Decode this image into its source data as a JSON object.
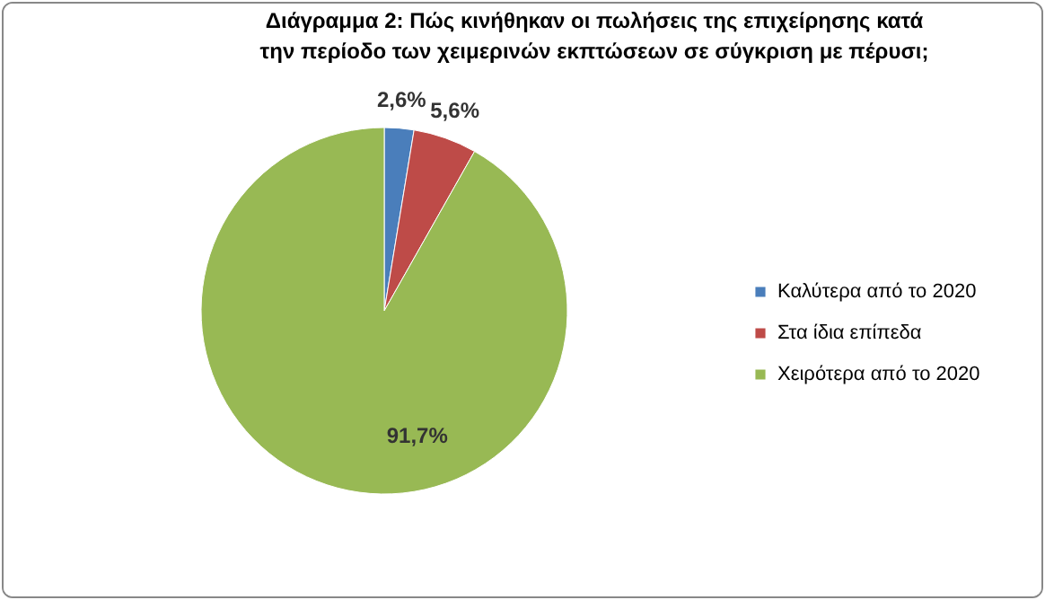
{
  "chart_data": {
    "type": "pie",
    "title": "Διάγραμμα 2: Πώς κινήθηκαν οι πωλήσεις της επιχείρησης κατά την περίοδο των χειμερινών εκπτώσεων σε σύγκριση με πέρυσι;",
    "categories": [
      "Καλύτερα από το 2020",
      "Στα ίδια επίπεδα",
      "Χειρότερα από το 2020"
    ],
    "values": [
      2.6,
      5.6,
      91.7
    ],
    "colors": [
      "#4a7ebb",
      "#be4b48",
      "#98b954"
    ],
    "value_labels": [
      "2,6%",
      "5,6%",
      "91,7%"
    ],
    "legend": "right"
  }
}
